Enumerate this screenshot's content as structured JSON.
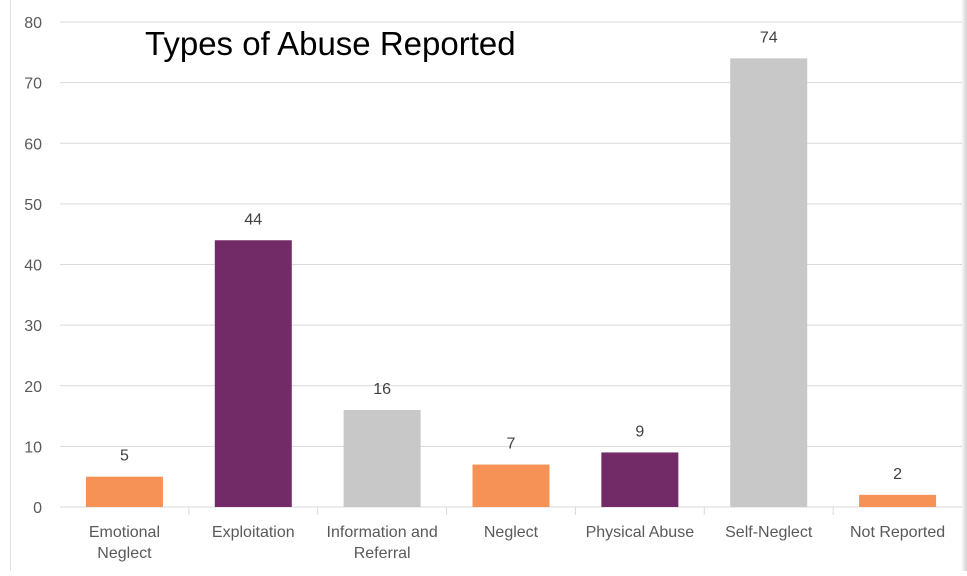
{
  "chart_data": {
    "type": "bar",
    "title": "Types of Abuse Reported",
    "xlabel": "",
    "ylabel": "",
    "categories": [
      [
        "Emotional",
        "Neglect"
      ],
      [
        "Exploitation"
      ],
      [
        "Information and",
        "Referral"
      ],
      [
        "Neglect"
      ],
      [
        "Physical Abuse"
      ],
      [
        "Self-Neglect"
      ],
      [
        "Not Reported"
      ]
    ],
    "values": [
      5,
      44,
      16,
      7,
      9,
      74,
      2
    ],
    "data_labels": [
      "5",
      "44",
      "16",
      "7",
      "9",
      "74",
      "2"
    ],
    "bar_colors": [
      "#F79256",
      "#722B67",
      "#C8C8C8",
      "#F79256",
      "#722B67",
      "#C8C8C8",
      "#F79256"
    ],
    "ylim": [
      0,
      80
    ],
    "yticks": [
      0,
      10,
      20,
      30,
      40,
      50,
      60,
      70,
      80
    ],
    "grid": true,
    "legend": "none"
  },
  "colors": {
    "gridline": "#d9d9d9",
    "axis_text": "#595959",
    "title_text": "#000000",
    "label_text": "#404040"
  }
}
